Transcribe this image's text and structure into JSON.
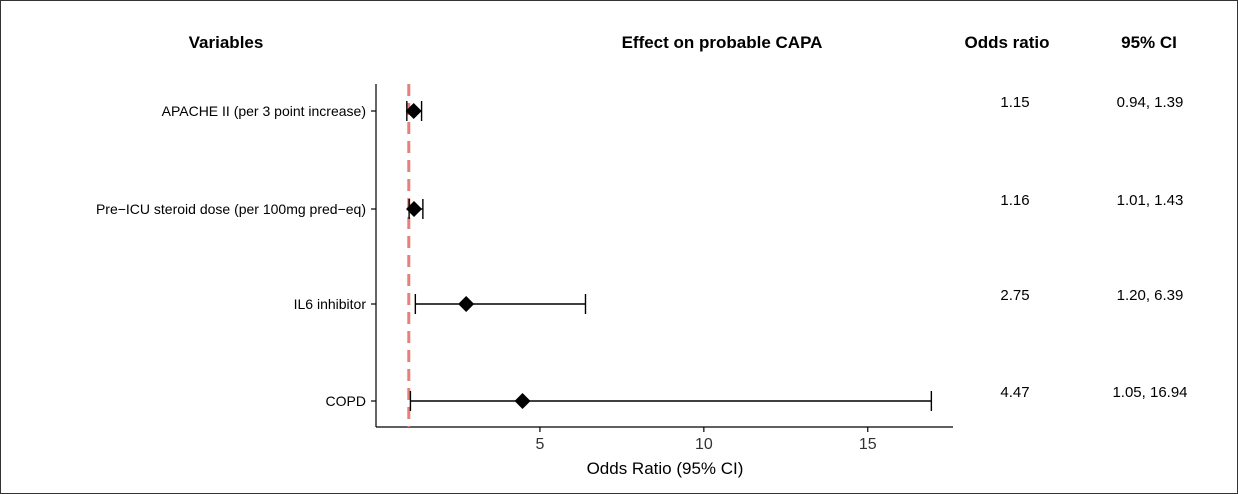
{
  "headers": {
    "variables": "Variables",
    "effect": "Effect on probable CAPA",
    "odds_ratio": "Odds ratio",
    "ci": "95% CI"
  },
  "colors": {
    "reference_line": "#e8807a",
    "marks": "#000000"
  },
  "chart_data": {
    "type": "forest",
    "xlabel": "Odds Ratio (95% CI)",
    "xlim": [
      0.0,
      17.6
    ],
    "xticks": [
      5,
      10,
      15
    ],
    "reference_line": 1,
    "rows": [
      {
        "label": "APACHE II (per 3 point increase)",
        "or": 1.15,
        "lower": 0.94,
        "upper": 1.39,
        "or_text": "1.15",
        "ci_text": "0.94, 1.39"
      },
      {
        "label": "Pre−ICU steroid dose (per 100mg pred−eq)",
        "or": 1.16,
        "lower": 1.01,
        "upper": 1.43,
        "or_text": "1.16",
        "ci_text": "1.01, 1.43"
      },
      {
        "label": "IL6 inhibitor",
        "or": 2.75,
        "lower": 1.2,
        "upper": 6.39,
        "or_text": "2.75",
        "ci_text": "1.20, 6.39"
      },
      {
        "label": "COPD",
        "or": 4.47,
        "lower": 1.05,
        "upper": 16.94,
        "or_text": "4.47",
        "ci_text": "1.05, 16.94"
      }
    ]
  }
}
